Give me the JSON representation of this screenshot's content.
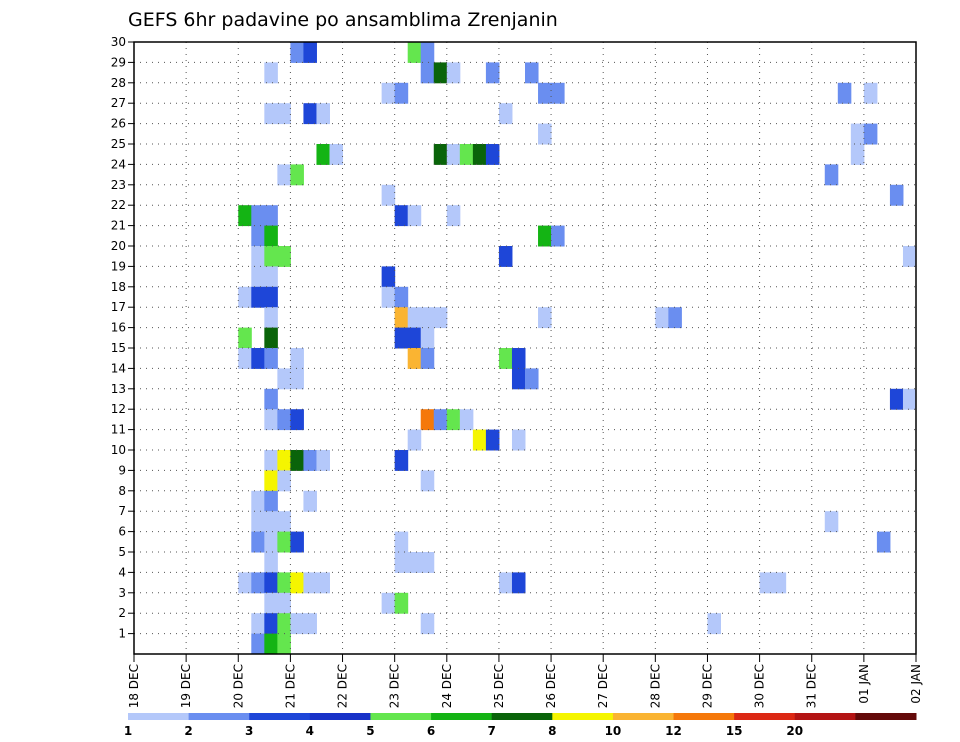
{
  "chart_data": {
    "type": "heatmap",
    "title": "GEFS 6hr padavine po ansamblima Zrenjanin",
    "xlabel": "",
    "ylabel": "",
    "x_ticks": [
      "18 DEC",
      "19 DEC",
      "20 DEC",
      "21 DEC",
      "22 DEC",
      "23 DEC",
      "24 DEC",
      "25 DEC",
      "26 DEC",
      "27 DEC",
      "28 DEC",
      "29 DEC",
      "30 DEC",
      "31 DEC",
      "01 JAN",
      "02 JAN"
    ],
    "y_ticks": [
      "1",
      "2",
      "3",
      "4",
      "5",
      "6",
      "7",
      "8",
      "9",
      "10",
      "11",
      "12",
      "13",
      "14",
      "15",
      "16",
      "17",
      "18",
      "19",
      "20",
      "21",
      "22",
      "23",
      "24",
      "25",
      "26",
      "27",
      "28",
      "29",
      "30"
    ],
    "xlim_days": [
      0,
      15
    ],
    "ylim": [
      0,
      30
    ],
    "step_hours": 6,
    "grid": true,
    "legend": {
      "position": "bottom",
      "labels": [
        "1",
        "2",
        "3",
        "4",
        "5",
        "6",
        "7",
        "8",
        "10",
        "12",
        "15",
        "20"
      ],
      "colors": [
        "#b4c8fa",
        "#6a8ef0",
        "#1e46d8",
        "#1832c8",
        "#64e64e",
        "#14b414",
        "#0a640a",
        "#f5f500",
        "#fab432",
        "#f5780a",
        "#dc2814",
        "#b41414",
        "#640a0a"
      ]
    },
    "cells": [
      {
        "member": 30,
        "day": "21 DEC",
        "hour": "00",
        "value": 2
      },
      {
        "member": 30,
        "day": "21 DEC",
        "hour": "06",
        "value": 3
      },
      {
        "member": 30,
        "day": "23 DEC",
        "hour": "06",
        "value": 5
      },
      {
        "member": 30,
        "day": "23 DEC",
        "hour": "12",
        "value": 2
      },
      {
        "member": 29,
        "day": "20 DEC",
        "hour": "12",
        "value": 1
      },
      {
        "member": 29,
        "day": "23 DEC",
        "hour": "12",
        "value": 2
      },
      {
        "member": 29,
        "day": "23 DEC",
        "hour": "18",
        "value": 7
      },
      {
        "member": 29,
        "day": "24 DEC",
        "hour": "00",
        "value": 1
      },
      {
        "member": 29,
        "day": "24 DEC",
        "hour": "18",
        "value": 2
      },
      {
        "member": 29,
        "day": "25 DEC",
        "hour": "12",
        "value": 2
      },
      {
        "member": 28,
        "day": "22 DEC",
        "hour": "18",
        "value": 1
      },
      {
        "member": 28,
        "day": "23 DEC",
        "hour": "00",
        "value": 2
      },
      {
        "member": 28,
        "day": "25 DEC",
        "hour": "18",
        "value": 2
      },
      {
        "member": 28,
        "day": "26 DEC",
        "hour": "00",
        "value": 2
      },
      {
        "member": 28,
        "day": "31 DEC",
        "hour": "12",
        "value": 2
      },
      {
        "member": 28,
        "day": "01 JAN",
        "hour": "00",
        "value": 1
      },
      {
        "member": 27,
        "day": "20 DEC",
        "hour": "12",
        "value": 1
      },
      {
        "member": 27,
        "day": "20 DEC",
        "hour": "18",
        "value": 1
      },
      {
        "member": 27,
        "day": "21 DEC",
        "hour": "06",
        "value": 3
      },
      {
        "member": 27,
        "day": "21 DEC",
        "hour": "12",
        "value": 1
      },
      {
        "member": 27,
        "day": "25 DEC",
        "hour": "00",
        "value": 1
      },
      {
        "member": 26,
        "day": "25 DEC",
        "hour": "18",
        "value": 1
      },
      {
        "member": 26,
        "day": "31 DEC",
        "hour": "18",
        "value": 1
      },
      {
        "member": 26,
        "day": "01 JAN",
        "hour": "00",
        "value": 2
      },
      {
        "member": 25,
        "day": "21 DEC",
        "hour": "12",
        "value": 6
      },
      {
        "member": 25,
        "day": "21 DEC",
        "hour": "18",
        "value": 1
      },
      {
        "member": 25,
        "day": "23 DEC",
        "hour": "18",
        "value": 7
      },
      {
        "member": 25,
        "day": "24 DEC",
        "hour": "00",
        "value": 1
      },
      {
        "member": 25,
        "day": "24 DEC",
        "hour": "06",
        "value": 5
      },
      {
        "member": 25,
        "day": "24 DEC",
        "hour": "12",
        "value": 7
      },
      {
        "member": 25,
        "day": "24 DEC",
        "hour": "18",
        "value": 3
      },
      {
        "member": 25,
        "day": "31 DEC",
        "hour": "18",
        "value": 1
      },
      {
        "member": 24,
        "day": "20 DEC",
        "hour": "18",
        "value": 1
      },
      {
        "member": 24,
        "day": "21 DEC",
        "hour": "00",
        "value": 5
      },
      {
        "member": 24,
        "day": "31 DEC",
        "hour": "06",
        "value": 2
      },
      {
        "member": 23,
        "day": "22 DEC",
        "hour": "18",
        "value": 1
      },
      {
        "member": 23,
        "day": "01 JAN",
        "hour": "12",
        "value": 2
      },
      {
        "member": 22,
        "day": "20 DEC",
        "hour": "00",
        "value": 6
      },
      {
        "member": 22,
        "day": "20 DEC",
        "hour": "06",
        "value": 2
      },
      {
        "member": 22,
        "day": "20 DEC",
        "hour": "12",
        "value": 2
      },
      {
        "member": 22,
        "day": "23 DEC",
        "hour": "00",
        "value": 3
      },
      {
        "member": 22,
        "day": "23 DEC",
        "hour": "06",
        "value": 1
      },
      {
        "member": 22,
        "day": "24 DEC",
        "hour": "00",
        "value": 1
      },
      {
        "member": 21,
        "day": "20 DEC",
        "hour": "06",
        "value": 2
      },
      {
        "member": 21,
        "day": "20 DEC",
        "hour": "12",
        "value": 6
      },
      {
        "member": 21,
        "day": "25 DEC",
        "hour": "18",
        "value": 6
      },
      {
        "member": 21,
        "day": "26 DEC",
        "hour": "00",
        "value": 2
      },
      {
        "member": 20,
        "day": "20 DEC",
        "hour": "06",
        "value": 1
      },
      {
        "member": 20,
        "day": "20 DEC",
        "hour": "12",
        "value": 5
      },
      {
        "member": 20,
        "day": "20 DEC",
        "hour": "18",
        "value": 5
      },
      {
        "member": 20,
        "day": "25 DEC",
        "hour": "00",
        "value": 3
      },
      {
        "member": 20,
        "day": "01 JAN",
        "hour": "18",
        "value": 1
      },
      {
        "member": 19,
        "day": "20 DEC",
        "hour": "06",
        "value": 1
      },
      {
        "member": 19,
        "day": "20 DEC",
        "hour": "12",
        "value": 1
      },
      {
        "member": 19,
        "day": "22 DEC",
        "hour": "18",
        "value": 3
      },
      {
        "member": 18,
        "day": "20 DEC",
        "hour": "00",
        "value": 1
      },
      {
        "member": 18,
        "day": "20 DEC",
        "hour": "06",
        "value": 3
      },
      {
        "member": 18,
        "day": "20 DEC",
        "hour": "12",
        "value": 3
      },
      {
        "member": 18,
        "day": "22 DEC",
        "hour": "18",
        "value": 1
      },
      {
        "member": 18,
        "day": "23 DEC",
        "hour": "00",
        "value": 2
      },
      {
        "member": 17,
        "day": "20 DEC",
        "hour": "12",
        "value": 1
      },
      {
        "member": 17,
        "day": "23 DEC",
        "hour": "00",
        "value": 10
      },
      {
        "member": 17,
        "day": "23 DEC",
        "hour": "06",
        "value": 1
      },
      {
        "member": 17,
        "day": "23 DEC",
        "hour": "12",
        "value": 1
      },
      {
        "member": 17,
        "day": "23 DEC",
        "hour": "18",
        "value": 1
      },
      {
        "member": 17,
        "day": "25 DEC",
        "hour": "18",
        "value": 1
      },
      {
        "member": 17,
        "day": "28 DEC",
        "hour": "00",
        "value": 1
      },
      {
        "member": 17,
        "day": "28 DEC",
        "hour": "06",
        "value": 2
      },
      {
        "member": 16,
        "day": "20 DEC",
        "hour": "00",
        "value": 5
      },
      {
        "member": 16,
        "day": "20 DEC",
        "hour": "12",
        "value": 7
      },
      {
        "member": 16,
        "day": "23 DEC",
        "hour": "00",
        "value": 3
      },
      {
        "member": 16,
        "day": "23 DEC",
        "hour": "06",
        "value": 3
      },
      {
        "member": 16,
        "day": "23 DEC",
        "hour": "12",
        "value": 1
      },
      {
        "member": 15,
        "day": "20 DEC",
        "hour": "00",
        "value": 1
      },
      {
        "member": 15,
        "day": "20 DEC",
        "hour": "06",
        "value": 3
      },
      {
        "member": 15,
        "day": "20 DEC",
        "hour": "12",
        "value": 2
      },
      {
        "member": 15,
        "day": "21 DEC",
        "hour": "00",
        "value": 1
      },
      {
        "member": 15,
        "day": "23 DEC",
        "hour": "06",
        "value": 10
      },
      {
        "member": 15,
        "day": "23 DEC",
        "hour": "12",
        "value": 2
      },
      {
        "member": 15,
        "day": "25 DEC",
        "hour": "00",
        "value": 5
      },
      {
        "member": 15,
        "day": "25 DEC",
        "hour": "06",
        "value": 3
      },
      {
        "member": 14,
        "day": "20 DEC",
        "hour": "18",
        "value": 1
      },
      {
        "member": 14,
        "day": "21 DEC",
        "hour": "00",
        "value": 1
      },
      {
        "member": 14,
        "day": "25 DEC",
        "hour": "06",
        "value": 3
      },
      {
        "member": 14,
        "day": "25 DEC",
        "hour": "12",
        "value": 2
      },
      {
        "member": 13,
        "day": "20 DEC",
        "hour": "12",
        "value": 2
      },
      {
        "member": 13,
        "day": "01 JAN",
        "hour": "12",
        "value": 3
      },
      {
        "member": 13,
        "day": "01 JAN",
        "hour": "18",
        "value": 1
      },
      {
        "member": 12,
        "day": "20 DEC",
        "hour": "12",
        "value": 1
      },
      {
        "member": 12,
        "day": "20 DEC",
        "hour": "18",
        "value": 2
      },
      {
        "member": 12,
        "day": "21 DEC",
        "hour": "00",
        "value": 3
      },
      {
        "member": 12,
        "day": "23 DEC",
        "hour": "12",
        "value": 12
      },
      {
        "member": 12,
        "day": "23 DEC",
        "hour": "18",
        "value": 2
      },
      {
        "member": 12,
        "day": "24 DEC",
        "hour": "00",
        "value": 5
      },
      {
        "member": 12,
        "day": "24 DEC",
        "hour": "06",
        "value": 1
      },
      {
        "member": 11,
        "day": "23 DEC",
        "hour": "06",
        "value": 1
      },
      {
        "member": 11,
        "day": "24 DEC",
        "hour": "12",
        "value": 8
      },
      {
        "member": 11,
        "day": "24 DEC",
        "hour": "18",
        "value": 3
      },
      {
        "member": 11,
        "day": "25 DEC",
        "hour": "06",
        "value": 1
      },
      {
        "member": 10,
        "day": "20 DEC",
        "hour": "12",
        "value": 1
      },
      {
        "member": 10,
        "day": "20 DEC",
        "hour": "18",
        "value": 8
      },
      {
        "member": 10,
        "day": "21 DEC",
        "hour": "00",
        "value": 7
      },
      {
        "member": 10,
        "day": "21 DEC",
        "hour": "06",
        "value": 2
      },
      {
        "member": 10,
        "day": "21 DEC",
        "hour": "12",
        "value": 1
      },
      {
        "member": 10,
        "day": "23 DEC",
        "hour": "00",
        "value": 3
      },
      {
        "member": 9,
        "day": "20 DEC",
        "hour": "12",
        "value": 8
      },
      {
        "member": 9,
        "day": "20 DEC",
        "hour": "18",
        "value": 1
      },
      {
        "member": 9,
        "day": "23 DEC",
        "hour": "12",
        "value": 1
      },
      {
        "member": 8,
        "day": "20 DEC",
        "hour": "06",
        "value": 1
      },
      {
        "member": 8,
        "day": "20 DEC",
        "hour": "12",
        "value": 2
      },
      {
        "member": 8,
        "day": "21 DEC",
        "hour": "06",
        "value": 1
      },
      {
        "member": 7,
        "day": "20 DEC",
        "hour": "06",
        "value": 1
      },
      {
        "member": 7,
        "day": "20 DEC",
        "hour": "12",
        "value": 1
      },
      {
        "member": 7,
        "day": "20 DEC",
        "hour": "18",
        "value": 1
      },
      {
        "member": 7,
        "day": "31 DEC",
        "hour": "06",
        "value": 1
      },
      {
        "member": 6,
        "day": "20 DEC",
        "hour": "06",
        "value": 2
      },
      {
        "member": 6,
        "day": "20 DEC",
        "hour": "12",
        "value": 1
      },
      {
        "member": 6,
        "day": "20 DEC",
        "hour": "18",
        "value": 5
      },
      {
        "member": 6,
        "day": "21 DEC",
        "hour": "00",
        "value": 3
      },
      {
        "member": 6,
        "day": "23 DEC",
        "hour": "00",
        "value": 1
      },
      {
        "member": 6,
        "day": "01 JAN",
        "hour": "06",
        "value": 2
      },
      {
        "member": 5,
        "day": "20 DEC",
        "hour": "12",
        "value": 1
      },
      {
        "member": 5,
        "day": "23 DEC",
        "hour": "00",
        "value": 1
      },
      {
        "member": 5,
        "day": "23 DEC",
        "hour": "06",
        "value": 1
      },
      {
        "member": 5,
        "day": "23 DEC",
        "hour": "12",
        "value": 1
      },
      {
        "member": 4,
        "day": "20 DEC",
        "hour": "00",
        "value": 1
      },
      {
        "member": 4,
        "day": "20 DEC",
        "hour": "06",
        "value": 2
      },
      {
        "member": 4,
        "day": "20 DEC",
        "hour": "12",
        "value": 3
      },
      {
        "member": 4,
        "day": "20 DEC",
        "hour": "18",
        "value": 5
      },
      {
        "member": 4,
        "day": "21 DEC",
        "hour": "00",
        "value": 8
      },
      {
        "member": 4,
        "day": "21 DEC",
        "hour": "06",
        "value": 1
      },
      {
        "member": 4,
        "day": "21 DEC",
        "hour": "12",
        "value": 1
      },
      {
        "member": 4,
        "day": "25 DEC",
        "hour": "00",
        "value": 1
      },
      {
        "member": 4,
        "day": "25 DEC",
        "hour": "06",
        "value": 3
      },
      {
        "member": 4,
        "day": "30 DEC",
        "hour": "00",
        "value": 1
      },
      {
        "member": 4,
        "day": "30 DEC",
        "hour": "06",
        "value": 1
      },
      {
        "member": 3,
        "day": "20 DEC",
        "hour": "12",
        "value": 1
      },
      {
        "member": 3,
        "day": "20 DEC",
        "hour": "18",
        "value": 1
      },
      {
        "member": 3,
        "day": "22 DEC",
        "hour": "18",
        "value": 1
      },
      {
        "member": 3,
        "day": "23 DEC",
        "hour": "00",
        "value": 5
      },
      {
        "member": 2,
        "day": "20 DEC",
        "hour": "06",
        "value": 1
      },
      {
        "member": 2,
        "day": "20 DEC",
        "hour": "12",
        "value": 3
      },
      {
        "member": 2,
        "day": "20 DEC",
        "hour": "18",
        "value": 5
      },
      {
        "member": 2,
        "day": "21 DEC",
        "hour": "00",
        "value": 1
      },
      {
        "member": 2,
        "day": "21 DEC",
        "hour": "06",
        "value": 1
      },
      {
        "member": 2,
        "day": "23 DEC",
        "hour": "12",
        "value": 1
      },
      {
        "member": 2,
        "day": "29 DEC",
        "hour": "00",
        "value": 1
      },
      {
        "member": 1,
        "day": "20 DEC",
        "hour": "06",
        "value": 2
      },
      {
        "member": 1,
        "day": "20 DEC",
        "hour": "12",
        "value": 6
      },
      {
        "member": 1,
        "day": "20 DEC",
        "hour": "18",
        "value": 5
      }
    ]
  }
}
